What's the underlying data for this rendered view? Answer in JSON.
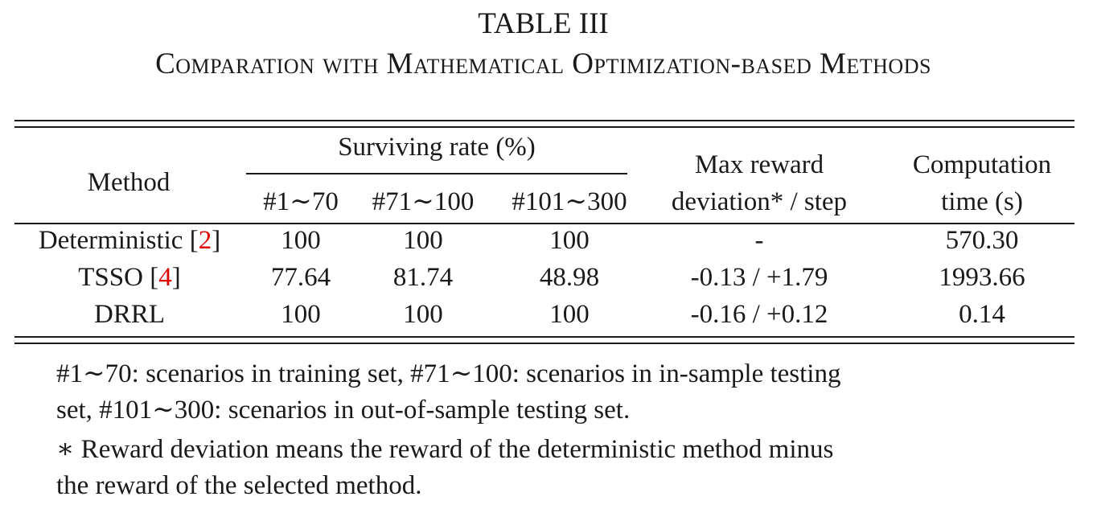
{
  "caption": {
    "label": "TABLE III",
    "title": "Comparation with Mathematical Optimization-based Methods"
  },
  "header": {
    "method": "Method",
    "surviving_rate": "Surviving rate (%)",
    "sub_cols": [
      "#1∼70",
      "#71∼100",
      "#101∼300"
    ],
    "max_reward_line1": "Max reward",
    "max_reward_line2": "deviation* / step",
    "computation_line1": "Computation",
    "computation_line2": "time (s)"
  },
  "rows": [
    {
      "method": "Deterministic",
      "ref": "2",
      "s1": "100",
      "s2": "100",
      "s3": "100",
      "deviation": "-",
      "time": "570.30"
    },
    {
      "method": "TSSO",
      "ref": "4",
      "s1": "77.64",
      "s2": "81.74",
      "s3": "48.98",
      "deviation": "-0.13 / +1.79",
      "time": "1993.66"
    },
    {
      "method": "DRRL",
      "ref": "",
      "s1": "100",
      "s2": "100",
      "s3": "100",
      "deviation": "-0.16 / +0.12",
      "time": "0.14"
    }
  ],
  "notes": {
    "note1_line1": "#1∼70: scenarios in training set, #71∼100: scenarios in in-sample testing",
    "note1_line2": "set, #101∼300: scenarios in out-of-sample testing set.",
    "note2_line1": "∗ Reward deviation means the reward of the deterministic method minus",
    "note2_line2": "the reward of the selected method."
  }
}
